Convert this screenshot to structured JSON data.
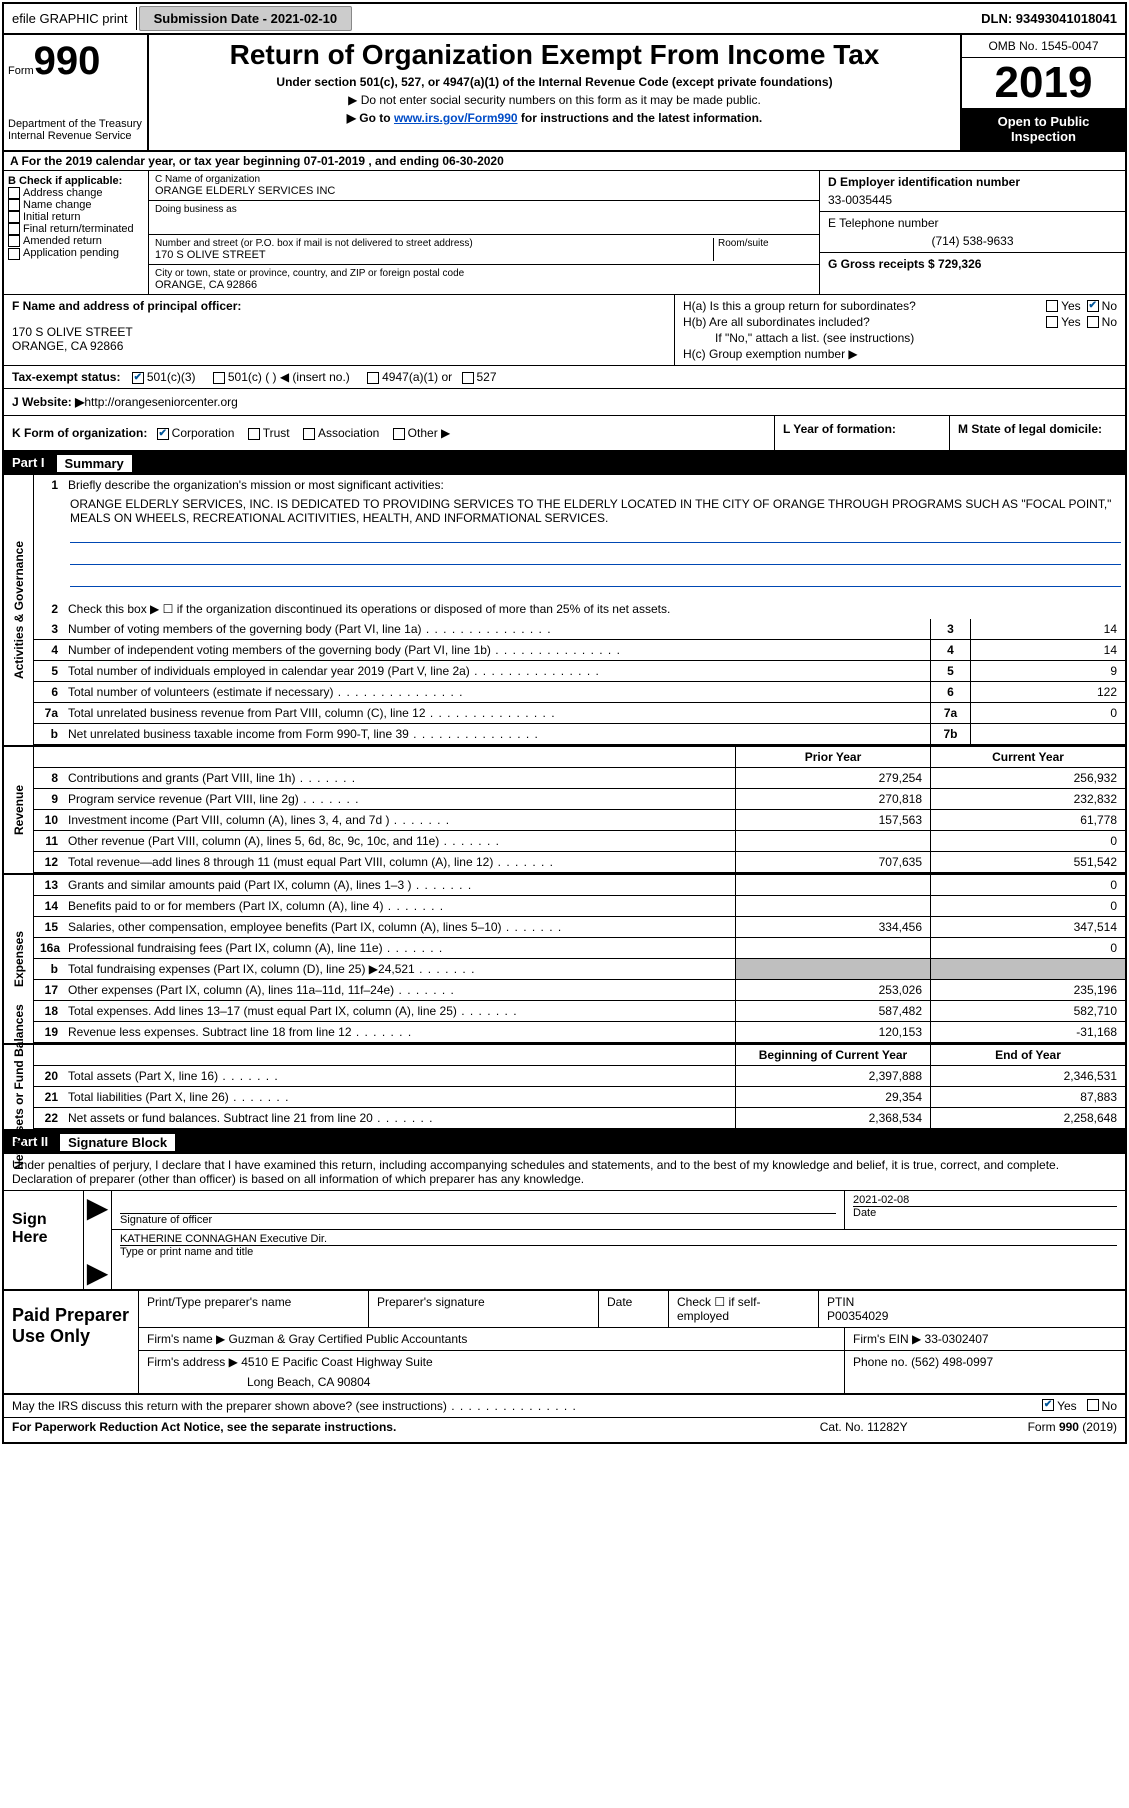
{
  "topbar": {
    "efile": "efile GRAPHIC print",
    "submission_label": "Submission Date - 2021-02-10",
    "dln_label": "DLN: 93493041018041"
  },
  "header": {
    "form_prefix": "Form",
    "form_num": "990",
    "dept1": "Department of the Treasury",
    "dept2": "Internal Revenue Service",
    "title": "Return of Organization Exempt From Income Tax",
    "sub1": "Under section 501(c), 527, or 4947(a)(1) of the Internal Revenue Code (except private foundations)",
    "sub2": "Do not enter social security numbers on this form as it may be made public.",
    "sub3_pre": "Go to ",
    "sub3_link": "www.irs.gov/Form990",
    "sub3_post": " for instructions and the latest information.",
    "omb": "OMB No. 1545-0047",
    "year": "2019",
    "open": "Open to Public Inspection"
  },
  "a_line": "A  For the 2019 calendar year, or tax year beginning 07-01-2019    , and ending 06-30-2020",
  "b": {
    "label": "B Check if applicable:",
    "opts": [
      "Address change",
      "Name change",
      "Initial return",
      "Final return/terminated",
      "Amended return",
      "Application pending"
    ]
  },
  "c": {
    "name_lbl": "C Name of organization",
    "name": "ORANGE ELDERLY SERVICES INC",
    "dba_lbl": "Doing business as",
    "addr_lbl": "Number and street (or P.O. box if mail is not delivered to street address)",
    "room_lbl": "Room/suite",
    "addr": "170 S OLIVE STREET",
    "city_lbl": "City or town, state or province, country, and ZIP or foreign postal code",
    "city": "ORANGE, CA  92866"
  },
  "d": {
    "lbl": "D Employer identification number",
    "val": "33-0035445"
  },
  "e": {
    "lbl": "E Telephone number",
    "val": "(714) 538-9633"
  },
  "g": {
    "lbl": "G Gross receipts $ 729,326"
  },
  "f": {
    "lbl": "F  Name and address of principal officer:",
    "l1": "170 S OLIVE STREET",
    "l2": "ORANGE, CA  92866"
  },
  "h": {
    "ha": "H(a)  Is this a group return for subordinates?",
    "hb": "H(b)  Are all subordinates included?",
    "hnote": "If \"No,\" attach a list. (see instructions)",
    "hc": "H(c)  Group exemption number ▶",
    "yes": "Yes",
    "no": "No"
  },
  "i": {
    "lbl": "Tax-exempt status:",
    "o1": "501(c)(3)",
    "o2": "501(c) (  ) ◀ (insert no.)",
    "o3": "4947(a)(1) or",
    "o4": "527"
  },
  "j": {
    "lbl": "J    Website: ▶",
    "val": " http://orangeseniorcenter.org"
  },
  "k": {
    "lbl": "K Form of organization:",
    "o1": "Corporation",
    "o2": "Trust",
    "o3": "Association",
    "o4": "Other ▶"
  },
  "l": {
    "lbl": "L Year of formation:"
  },
  "m": {
    "lbl": "M State of legal domicile:"
  },
  "part1": {
    "num": "Part I",
    "title": "Summary",
    "side_ag": "Activities & Governance",
    "side_rev": "Revenue",
    "side_exp": "Expenses",
    "side_na": "Net Assets or Fund Balances",
    "r1": "Briefly describe the organization's mission or most significant activities:",
    "r1_desc": "ORANGE ELDERLY SERVICES, INC. IS DEDICATED TO PROVIDING SERVICES TO THE ELDERLY LOCATED IN THE CITY OF ORANGE THROUGH PROGRAMS SUCH AS \"FOCAL POINT,\" MEALS ON WHEELS, RECREATIONAL ACITIVITIES, HEALTH, AND INFORMATIONAL SERVICES.",
    "r2": "Check this box ▶ ☐  if the organization discontinued its operations or disposed of more than 25% of its net assets.",
    "rows_ag": [
      {
        "n": "3",
        "t": "Number of voting members of the governing body (Part VI, line 1a)",
        "b": "3",
        "v": "14"
      },
      {
        "n": "4",
        "t": "Number of independent voting members of the governing body (Part VI, line 1b)",
        "b": "4",
        "v": "14"
      },
      {
        "n": "5",
        "t": "Total number of individuals employed in calendar year 2019 (Part V, line 2a)",
        "b": "5",
        "v": "9"
      },
      {
        "n": "6",
        "t": "Total number of volunteers (estimate if necessary)",
        "b": "6",
        "v": "122"
      },
      {
        "n": "7a",
        "t": "Total unrelated business revenue from Part VIII, column (C), line 12",
        "b": "7a",
        "v": "0"
      },
      {
        "n": "b",
        "t": "Net unrelated business taxable income from Form 990-T, line 39",
        "b": "7b",
        "v": ""
      }
    ],
    "hdr_prior": "Prior Year",
    "hdr_curr": "Current Year",
    "rows_rev": [
      {
        "n": "8",
        "t": "Contributions and grants (Part VIII, line 1h)",
        "p": "279,254",
        "c": "256,932"
      },
      {
        "n": "9",
        "t": "Program service revenue (Part VIII, line 2g)",
        "p": "270,818",
        "c": "232,832"
      },
      {
        "n": "10",
        "t": "Investment income (Part VIII, column (A), lines 3, 4, and 7d )",
        "p": "157,563",
        "c": "61,778"
      },
      {
        "n": "11",
        "t": "Other revenue (Part VIII, column (A), lines 5, 6d, 8c, 9c, 10c, and 11e)",
        "p": "",
        "c": "0"
      },
      {
        "n": "12",
        "t": "Total revenue—add lines 8 through 11 (must equal Part VIII, column (A), line 12)",
        "p": "707,635",
        "c": "551,542"
      }
    ],
    "rows_exp": [
      {
        "n": "13",
        "t": "Grants and similar amounts paid (Part IX, column (A), lines 1–3 )",
        "p": "",
        "c": "0"
      },
      {
        "n": "14",
        "t": "Benefits paid to or for members (Part IX, column (A), line 4)",
        "p": "",
        "c": "0"
      },
      {
        "n": "15",
        "t": "Salaries, other compensation, employee benefits (Part IX, column (A), lines 5–10)",
        "p": "334,456",
        "c": "347,514"
      },
      {
        "n": "16a",
        "t": "Professional fundraising fees (Part IX, column (A), line 11e)",
        "p": "",
        "c": "0"
      },
      {
        "n": "b",
        "t": "Total fundraising expenses (Part IX, column (D), line 25) ▶24,521",
        "p": "shade",
        "c": "shade"
      },
      {
        "n": "17",
        "t": "Other expenses (Part IX, column (A), lines 11a–11d, 11f–24e)",
        "p": "253,026",
        "c": "235,196"
      },
      {
        "n": "18",
        "t": "Total expenses. Add lines 13–17 (must equal Part IX, column (A), line 25)",
        "p": "587,482",
        "c": "582,710"
      },
      {
        "n": "19",
        "t": "Revenue less expenses. Subtract line 18 from line 12",
        "p": "120,153",
        "c": "-31,168"
      }
    ],
    "hdr_beg": "Beginning of Current Year",
    "hdr_end": "End of Year",
    "rows_na": [
      {
        "n": "20",
        "t": "Total assets (Part X, line 16)",
        "p": "2,397,888",
        "c": "2,346,531"
      },
      {
        "n": "21",
        "t": "Total liabilities (Part X, line 26)",
        "p": "29,354",
        "c": "87,883"
      },
      {
        "n": "22",
        "t": "Net assets or fund balances. Subtract line 21 from line 20",
        "p": "2,368,534",
        "c": "2,258,648"
      }
    ]
  },
  "part2": {
    "num": "Part II",
    "title": "Signature Block",
    "intro": "Under penalties of perjury, I declare that I have examined this return, including accompanying schedules and statements, and to the best of my knowledge and belief, it is true, correct, and complete. Declaration of preparer (other than officer) is based on all information of which preparer has any knowledge.",
    "sign_here": "Sign Here",
    "sig_officer_lbl": "Signature of officer",
    "date_lbl": "Date",
    "date_val": "2021-02-08",
    "name_title": "KATHERINE CONNAGHAN  Executive Dir.",
    "name_title_lbl": "Type or print name and title",
    "paid": "Paid Preparer Use Only",
    "pp_name_lbl": "Print/Type preparer's name",
    "pp_sig_lbl": "Preparer's signature",
    "pp_date_lbl": "Date",
    "pp_check": "Check ☐ if self-employed",
    "ptin_lbl": "PTIN",
    "ptin": "P00354029",
    "firm_name_lbl": "Firm's name    ▶",
    "firm_name": "Guzman & Gray Certified Public Accountants",
    "firm_ein_lbl": "Firm's EIN ▶",
    "firm_ein": "33-0302407",
    "firm_addr_lbl": "Firm's address ▶",
    "firm_addr": "4510 E Pacific Coast Highway Suite",
    "firm_city": "Long Beach, CA  90804",
    "phone_lbl": "Phone no.",
    "phone": "(562) 498-0997",
    "may": "May the IRS discuss this return with the preparer shown above? (see instructions)",
    "yes": "Yes",
    "no": "No"
  },
  "footer": {
    "l": "For Paperwork Reduction Act Notice, see the separate instructions.",
    "c": "Cat. No. 11282Y",
    "r": "Form 990 (2019)"
  }
}
